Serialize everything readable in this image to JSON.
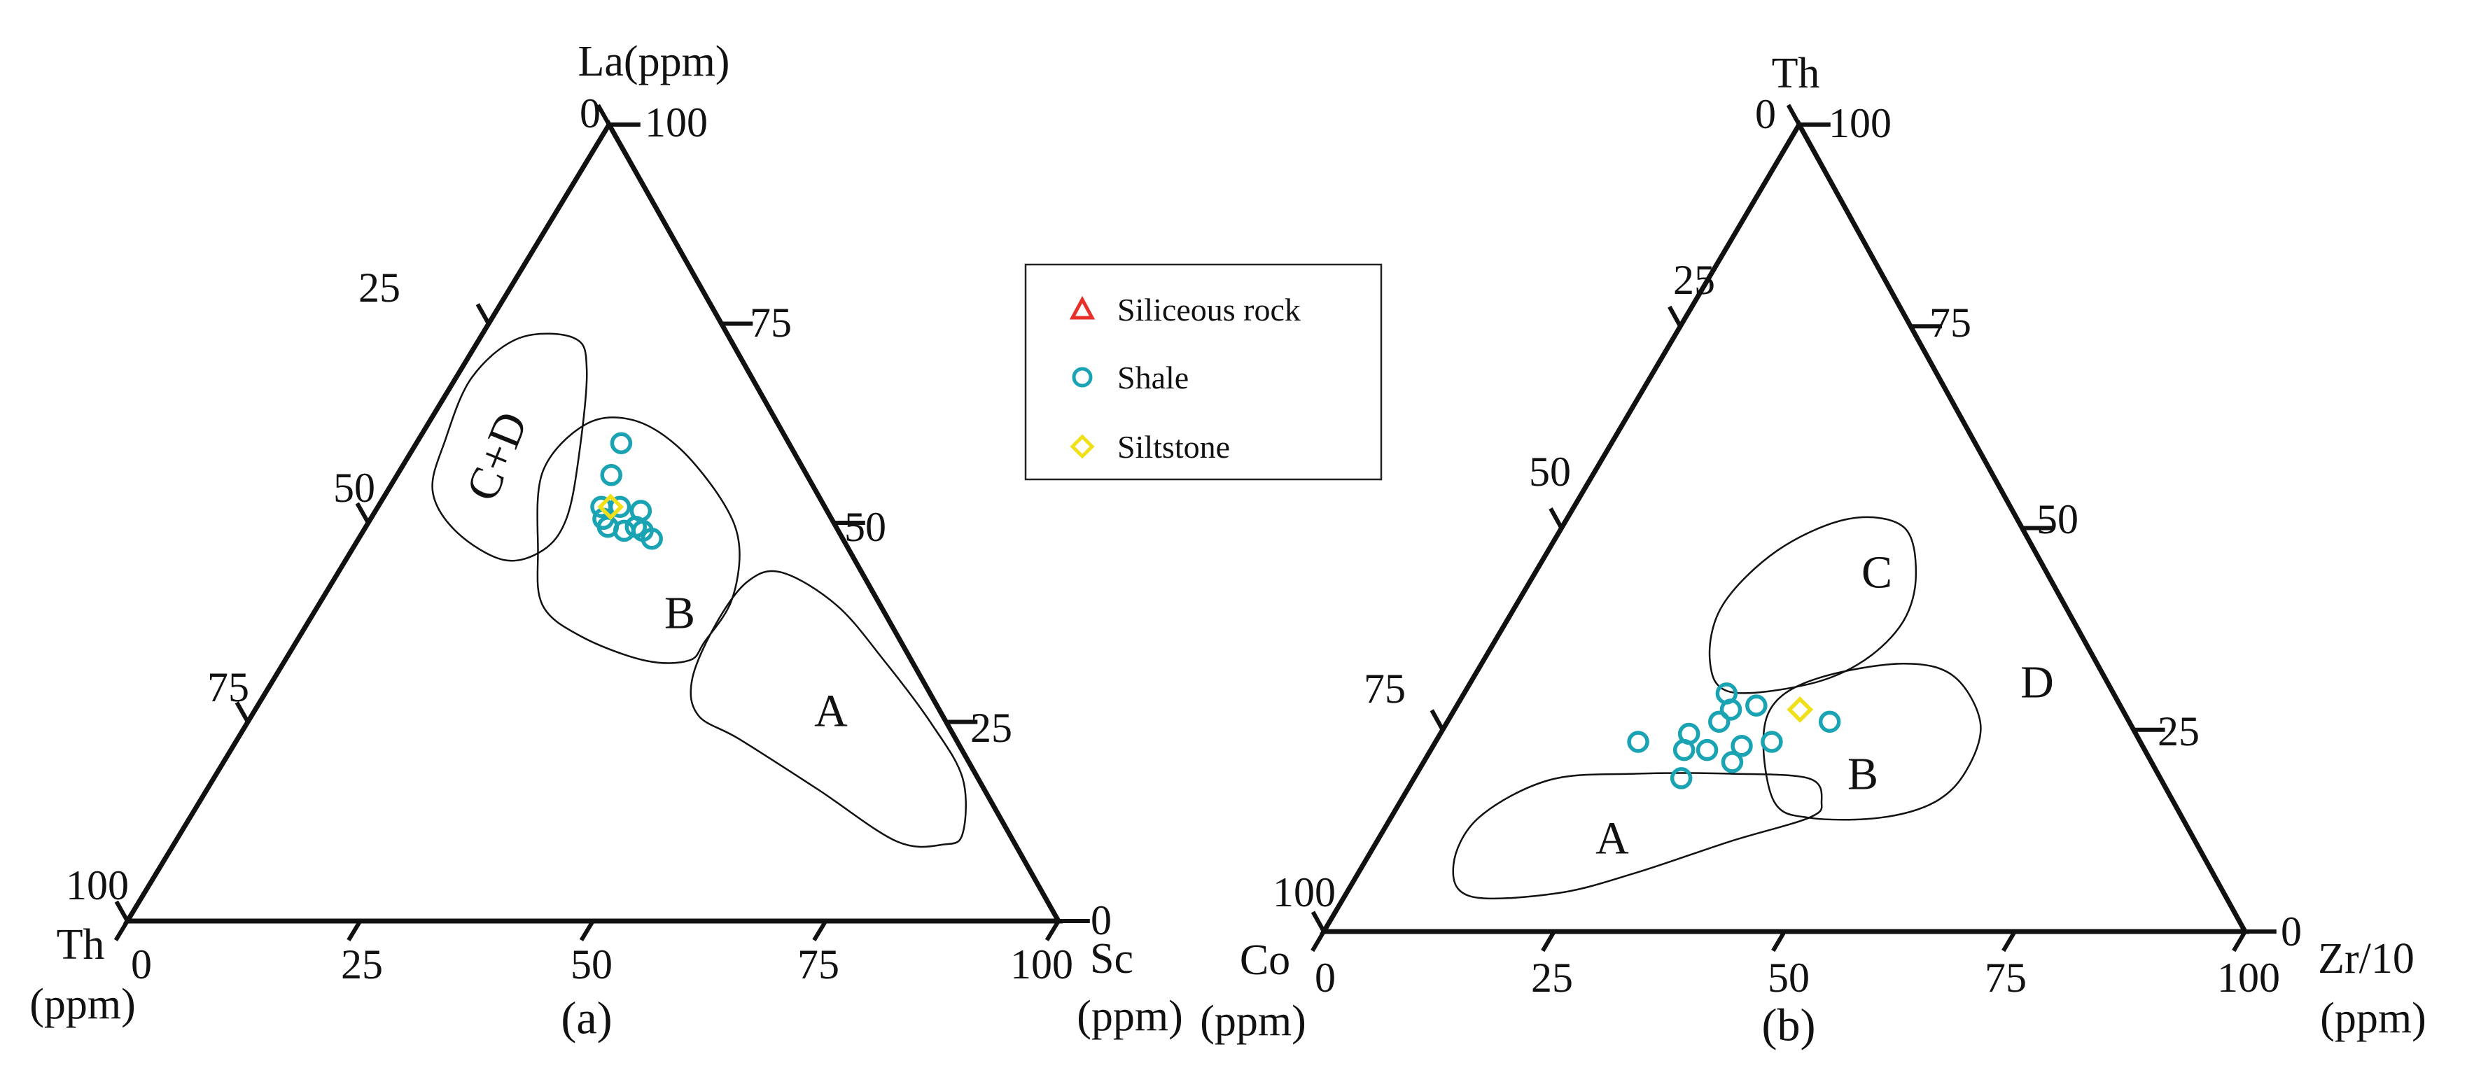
{
  "chart_data": [
    {
      "type": "ternary-scatter",
      "panel_label": "(a)",
      "axes": {
        "top": {
          "title": "La(ppm)"
        },
        "left": {
          "title": "Th",
          "unit": "(ppm)"
        },
        "right": {
          "title": "Sc",
          "unit": "(ppm)"
        }
      },
      "ticks": {
        "left_side": [
          "0",
          "25",
          "50",
          "75",
          "100"
        ],
        "right_side": [
          "100",
          "75",
          "50",
          "25",
          "0"
        ],
        "bottom": [
          "0",
          "25",
          "50",
          "75",
          "100"
        ]
      },
      "regions": [
        "C+D",
        "B",
        "A"
      ],
      "series": [
        {
          "name": "Shale",
          "marker": "circle",
          "color": "#1aa3b3",
          "points": [
            {
              "La": 60,
              "Th": 18,
              "Sc": 22
            },
            {
              "La": 56,
              "Th": 21,
              "Sc": 23
            },
            {
              "La": 52,
              "Th": 24,
              "Sc": 24
            },
            {
              "La": 52,
              "Th": 22,
              "Sc": 26
            },
            {
              "La": 51.5,
              "Th": 20,
              "Sc": 28.5
            },
            {
              "La": 50.5,
              "Th": 24.5,
              "Sc": 25
            },
            {
              "La": 49.5,
              "Th": 24.5,
              "Sc": 26
            },
            {
              "La": 49,
              "Th": 23,
              "Sc": 28
            },
            {
              "La": 49.5,
              "Th": 21.5,
              "Sc": 29
            },
            {
              "La": 49,
              "Th": 21,
              "Sc": 30
            },
            {
              "La": 48,
              "Th": 20.5,
              "Sc": 31.5
            }
          ]
        },
        {
          "name": "Siltstone",
          "marker": "diamond",
          "color": "#f0e01a",
          "points": [
            {
              "La": 52,
              "Th": 23,
              "Sc": 25
            }
          ]
        }
      ]
    },
    {
      "type": "ternary-scatter",
      "panel_label": "(b)",
      "axes": {
        "top": {
          "title": "Th"
        },
        "left": {
          "title": "Co",
          "unit": "(ppm)"
        },
        "right": {
          "title": "Zr/10",
          "unit": "(ppm)"
        }
      },
      "ticks": {
        "left_side": [
          "0",
          "25",
          "50",
          "75",
          "100"
        ],
        "right_side": [
          "100",
          "75",
          "50",
          "25",
          "0"
        ],
        "bottom": [
          "0",
          "25",
          "50",
          "75",
          "100"
        ]
      },
      "regions": [
        "C",
        "B",
        "A",
        "D"
      ],
      "series": [
        {
          "name": "Shale",
          "marker": "circle",
          "color": "#1aa3b3",
          "points": [
            {
              "Th": 29.5,
              "Co": 42,
              "Zr": 28.5
            },
            {
              "Th": 27.5,
              "Co": 42.5,
              "Zr": 30
            },
            {
              "Th": 28,
              "Co": 39.5,
              "Zr": 32.5
            },
            {
              "Th": 26,
              "Co": 44.5,
              "Zr": 29.5
            },
            {
              "Th": 23.5,
              "Co": 54.5,
              "Zr": 22
            },
            {
              "Th": 24.5,
              "Co": 48.5,
              "Zr": 27
            },
            {
              "Th": 22.5,
              "Co": 50,
              "Zr": 27.5
            },
            {
              "Th": 22.5,
              "Co": 47.5,
              "Zr": 30
            },
            {
              "Th": 23,
              "Co": 43.5,
              "Zr": 33.5
            },
            {
              "Th": 21,
              "Co": 45.5,
              "Zr": 33.5
            },
            {
              "Th": 23.5,
              "Co": 40,
              "Zr": 36.5
            },
            {
              "Th": 26,
              "Co": 32.5,
              "Zr": 41.5
            },
            {
              "Th": 19,
              "Co": 52,
              "Zr": 29
            }
          ]
        },
        {
          "name": "Siltstone",
          "marker": "diamond",
          "color": "#f0e01a",
          "points": [
            {
              "Th": 27.5,
              "Co": 35,
              "Zr": 37.5
            }
          ]
        }
      ]
    }
  ],
  "legend": {
    "items": [
      {
        "label": "Siliceous rock",
        "marker": "triangle",
        "color": "#e8302a"
      },
      {
        "label": "Shale",
        "marker": "circle",
        "color": "#1aa3b3"
      },
      {
        "label": "Siltstone",
        "marker": "diamond",
        "color": "#f0e01a"
      }
    ]
  }
}
